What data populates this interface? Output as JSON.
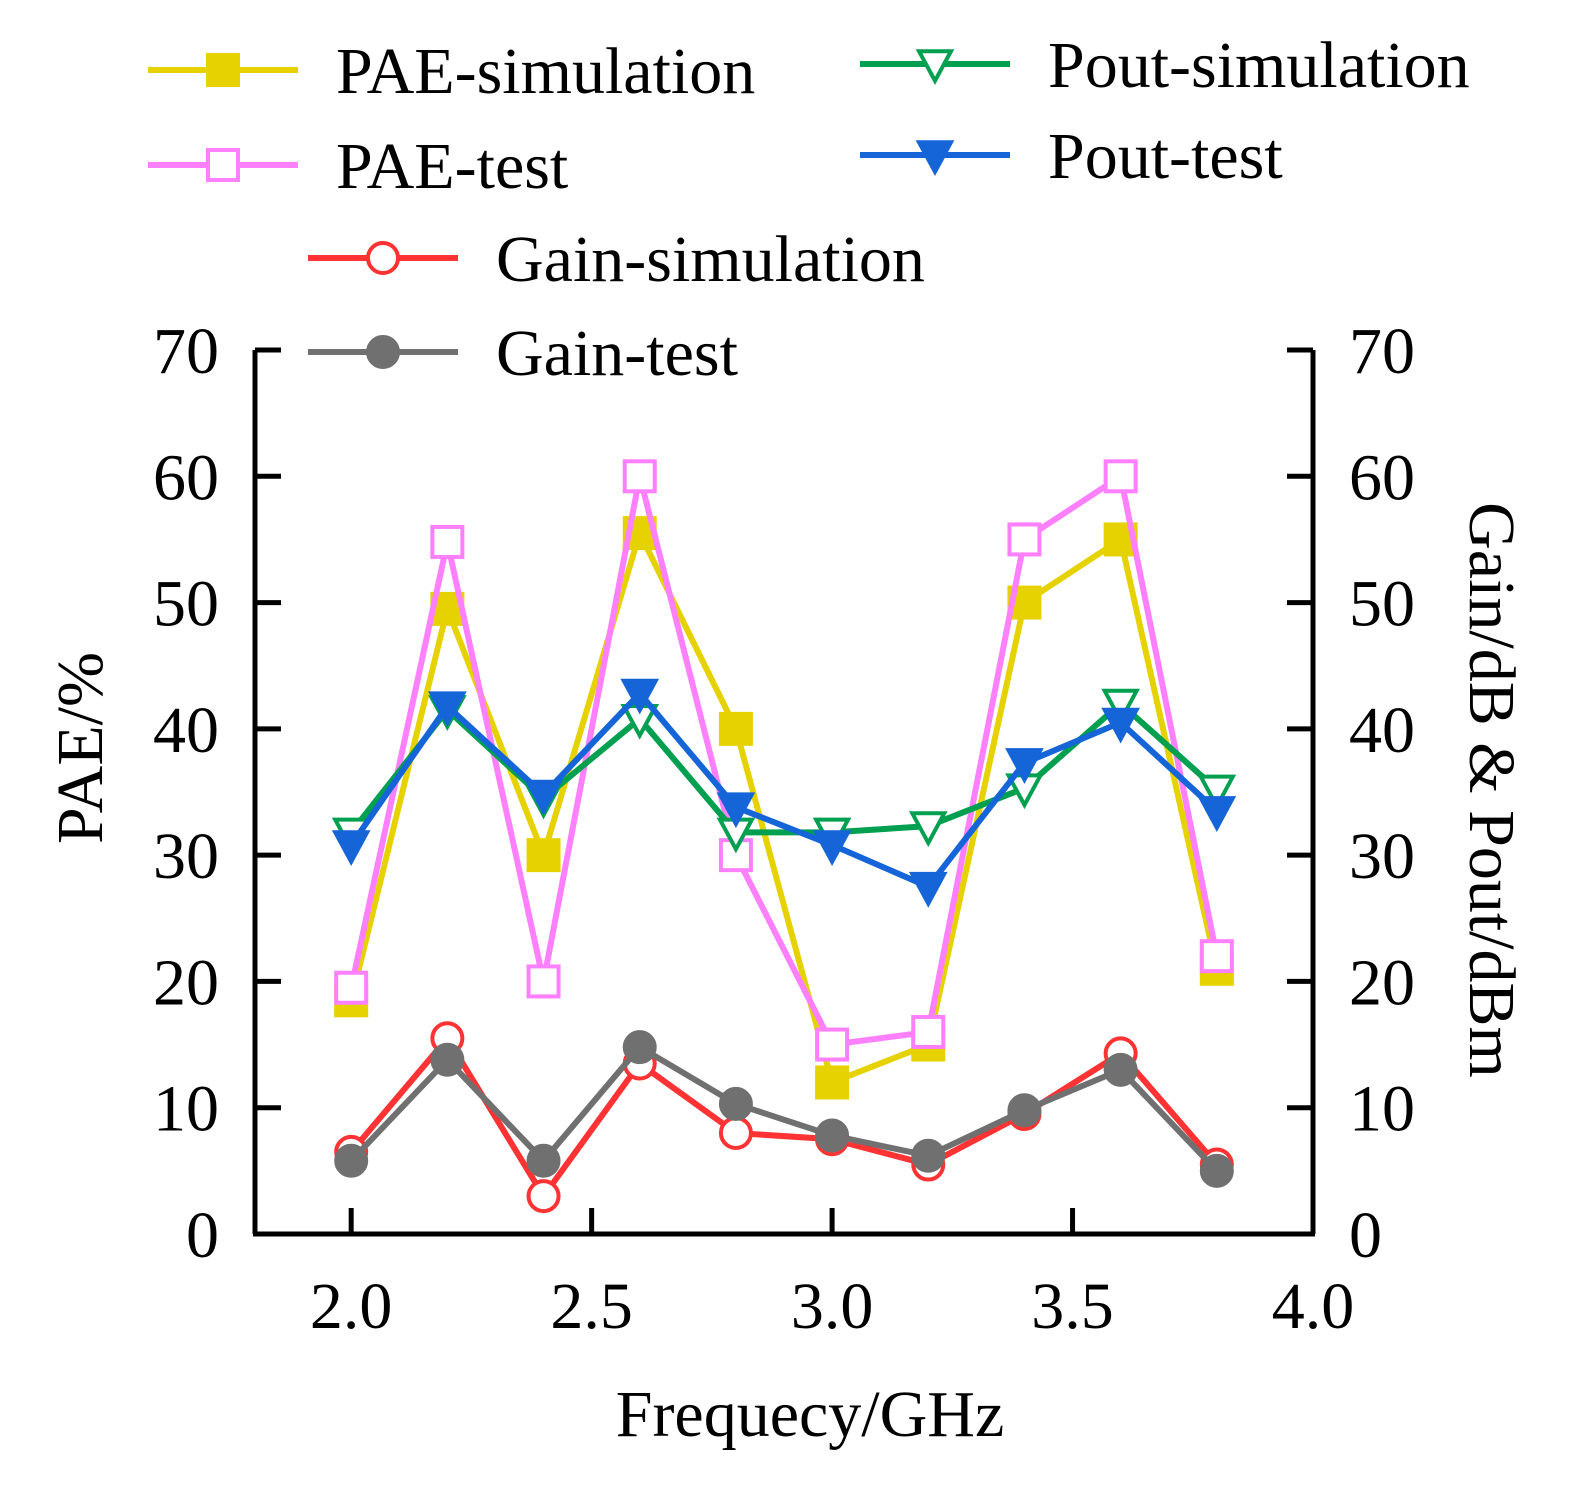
{
  "chart_data": {
    "type": "line",
    "title": "",
    "xlabel": "Frequecy/GHz",
    "ylabel": "PAE/%",
    "y2label": "Gain/dB & Pout/dBm",
    "xlim": [
      1.8,
      4.0
    ],
    "ylim": [
      0,
      70
    ],
    "y2lim": [
      0,
      70
    ],
    "xticks": [
      "2.0",
      "2.5",
      "3.0",
      "3.5",
      "4.0"
    ],
    "yticks": [
      "0",
      "10",
      "20",
      "30",
      "40",
      "50",
      "60",
      "70"
    ],
    "y2ticks": [
      "0",
      "10",
      "20",
      "30",
      "40",
      "50",
      "60",
      "70"
    ],
    "grid": false,
    "legend_position": "top",
    "x": [
      2.0,
      2.2,
      2.4,
      2.6,
      2.8,
      3.0,
      3.2,
      3.4,
      3.6,
      3.8
    ],
    "series": [
      {
        "name": "PAE-simulation",
        "axis": "left",
        "color": "#e6d200",
        "marker": "filled-square",
        "values": [
          18.5,
          49.5,
          30,
          55.5,
          40,
          12,
          15,
          50,
          55,
          21
        ]
      },
      {
        "name": "PAE-test",
        "axis": "left",
        "color": "#ff80ff",
        "marker": "open-square",
        "values": [
          19.5,
          54.8,
          20,
          60,
          30,
          15,
          16,
          55,
          60,
          22
        ]
      },
      {
        "name": "Gain-simulation",
        "axis": "right",
        "color": "#ff3333",
        "marker": "open-circle",
        "values": [
          6.5,
          15.5,
          3,
          13.5,
          8,
          7.5,
          5.5,
          9.5,
          14.3,
          5.5
        ]
      },
      {
        "name": "Gain-test",
        "axis": "right",
        "color": "#707070",
        "marker": "filled-circle",
        "values": [
          5.8,
          13.8,
          5.8,
          14.8,
          10.3,
          7.8,
          6.2,
          9.8,
          13,
          5
        ]
      },
      {
        "name": "Pout-simulation",
        "axis": "right",
        "color": "#00a050",
        "marker": "open-triangle-down",
        "values": [
          31.8,
          41.5,
          34.5,
          40.8,
          31.8,
          31.8,
          32.3,
          35.3,
          42,
          35.2
        ]
      },
      {
        "name": "Pout-test",
        "axis": "right",
        "color": "#1565d8",
        "marker": "filled-triangle-down",
        "values": [
          30.8,
          41.8,
          34.8,
          42.8,
          33.8,
          30.8,
          27.5,
          37.3,
          40.5,
          33.5
        ]
      }
    ]
  }
}
